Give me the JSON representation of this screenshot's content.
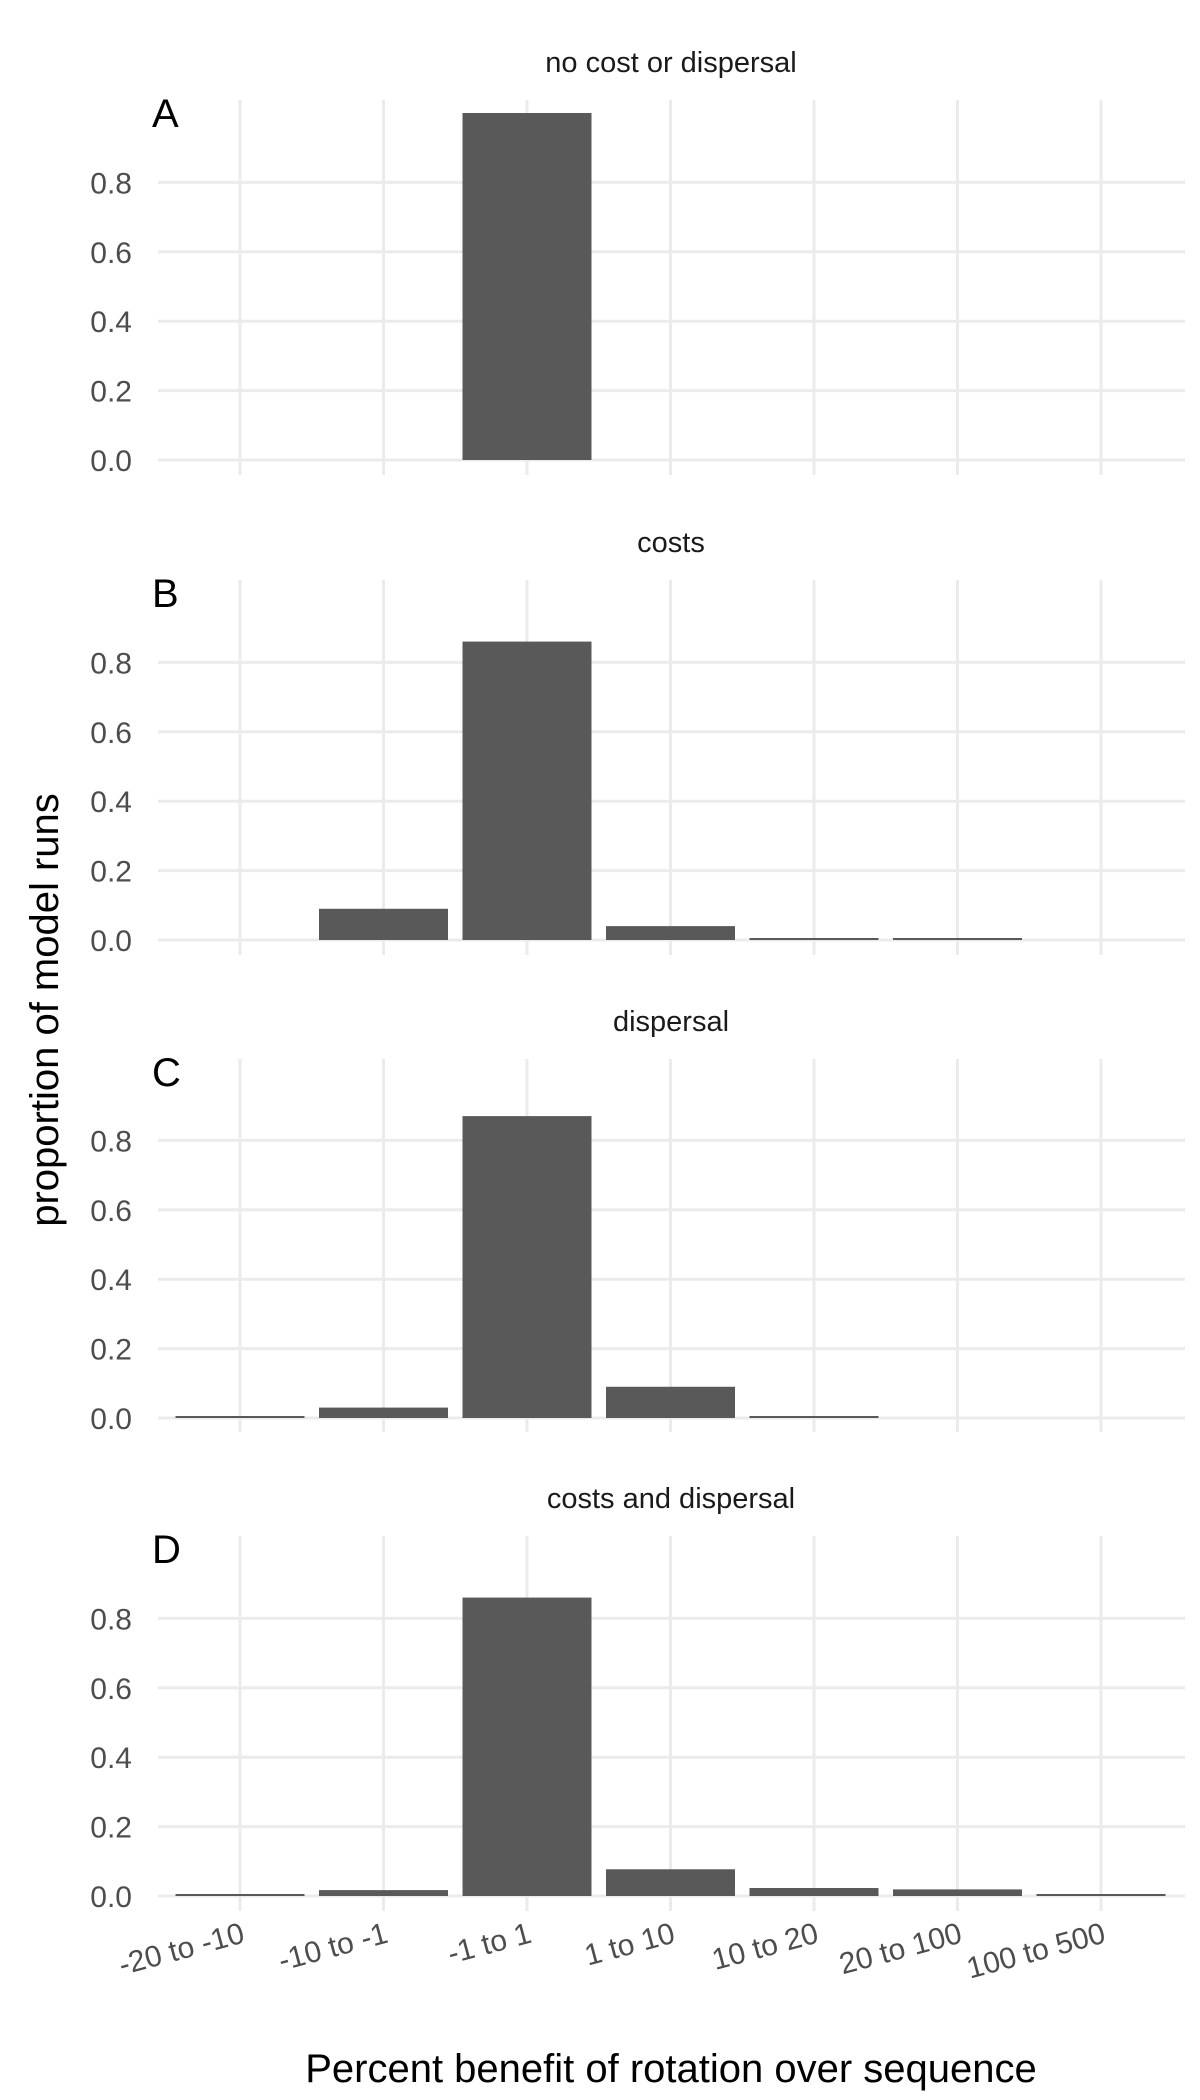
{
  "chart_data": {
    "type": "bar",
    "xlabel": "Percent benefit of rotation over sequence",
    "ylabel": "proportion of model runs",
    "categories": [
      "-20 to -10",
      "-10 to -1",
      "-1 to 1",
      "1 to 10",
      "10 to 20",
      "20 to 100",
      "100 to 500"
    ],
    "y_ticks": [
      "0.0",
      "0.2",
      "0.4",
      "0.6",
      "0.8"
    ],
    "ylim": [
      0,
      1.0
    ],
    "grid": true,
    "colors": {
      "bar": "#595959",
      "grid": "#ebebeb"
    },
    "panels": [
      {
        "tag": "A",
        "title": "no cost or dispersal",
        "values": [
          0,
          0,
          1.0,
          0,
          0,
          0,
          0
        ]
      },
      {
        "tag": "B",
        "title": "costs",
        "values": [
          0,
          0.09,
          0.86,
          0.04,
          0.003,
          0.003,
          0
        ]
      },
      {
        "tag": "C",
        "title": "dispersal",
        "values": [
          0.003,
          0.03,
          0.87,
          0.09,
          0.003,
          0,
          0
        ]
      },
      {
        "tag": "D",
        "title": "costs and dispersal",
        "values": [
          0.003,
          0.017,
          0.86,
          0.077,
          0.023,
          0.019,
          0.004
        ]
      }
    ]
  }
}
